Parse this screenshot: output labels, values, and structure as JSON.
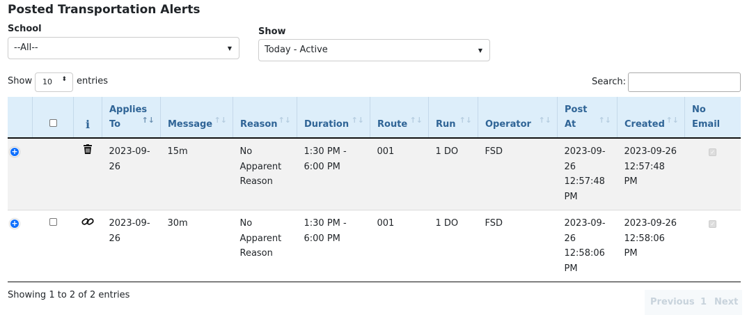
{
  "title": "Posted Transportation Alerts",
  "filters": {
    "school_label": "School",
    "school_value": "--All--",
    "show_label": "Show",
    "show_value": "Today - Active"
  },
  "length": {
    "show": "Show",
    "value": "10",
    "entries": "entries"
  },
  "search": {
    "label": "Search:",
    "value": ""
  },
  "columns": [
    "Applies To",
    "Message",
    "Reason",
    "Duration",
    "Route",
    "Run",
    "Operator",
    "Post At",
    "Created",
    "No Email"
  ],
  "info_header_icon": "info-icon",
  "rows": [
    {
      "action_icon": "trash-icon",
      "applies_to": "2023-09-26",
      "message": "15m",
      "reason": "No Apparent Reason",
      "duration": "1:30 PM - 6:00 PM",
      "route": "001",
      "run": "1 DO",
      "operator": "FSD",
      "post_at": "2023-09-26 12:57:48 PM",
      "created": "2023-09-26 12:57:48 PM",
      "no_email": true,
      "selectable": false
    },
    {
      "action_icon": "link-icon",
      "applies_to": "2023-09-26",
      "message": "30m",
      "reason": "No Apparent Reason",
      "duration": "1:30 PM - 6:00 PM",
      "route": "001",
      "run": "1 DO",
      "operator": "FSD",
      "post_at": "2023-09-26 12:58:06 PM",
      "created": "2023-09-26 12:58:06 PM",
      "no_email": true,
      "selectable": true
    }
  ],
  "footer": {
    "info": "Showing 1 to 2 of 2 entries",
    "previous": "Previous",
    "page": "1",
    "next": "Next"
  },
  "colors": {
    "header_bg": "#ddeefa",
    "header_text": "#2f6496",
    "expand": "#0d6efd"
  }
}
